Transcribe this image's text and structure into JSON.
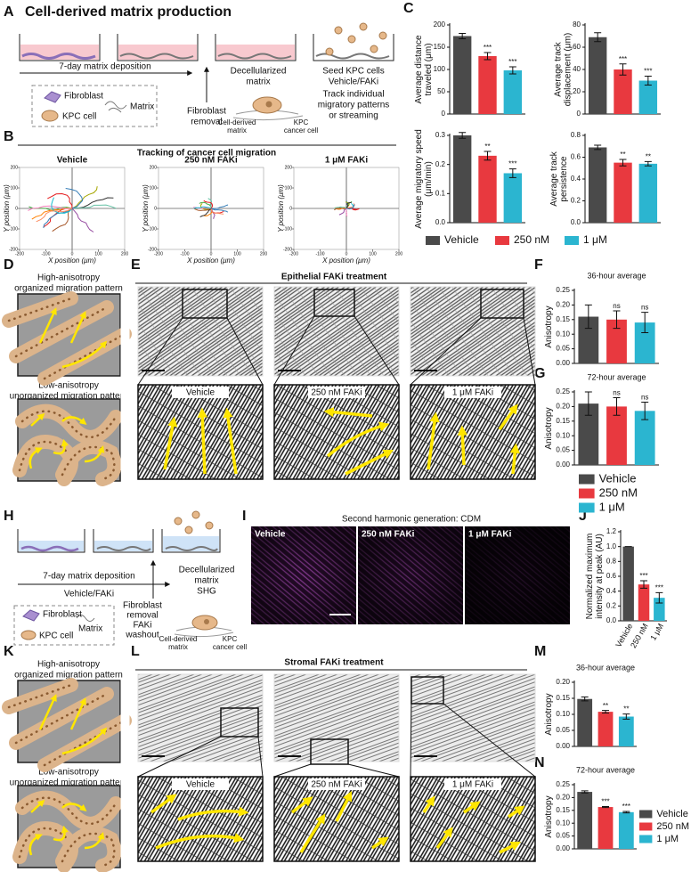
{
  "legend": [
    {
      "name": "Vehicle",
      "color": "#4a4a4a"
    },
    {
      "name": "250 nM",
      "color": "#e8393f"
    },
    {
      "name": "1 μM",
      "color": "#2bb5d0"
    }
  ],
  "A": {
    "letter": "A",
    "title": "Cell-derived matrix production",
    "deposition": "7-day matrix deposition",
    "removal": [
      "Fibroblast",
      "removal"
    ],
    "decell": [
      "Decellularized",
      "matrix"
    ],
    "seed": [
      "Seed KPC cells",
      "Vehicle/FAKi",
      "Track individual",
      "migratory patterns",
      "or streaming"
    ],
    "key": [
      "Fibroblast",
      "KPC cell",
      "Matrix"
    ],
    "inset": [
      "Cell-derived",
      "matrix",
      "KPC",
      "cancer cell"
    ]
  },
  "B": {
    "letter": "B",
    "title": "Tracking of cancer cell migration",
    "plots": [
      "Vehicle",
      "250 nM FAKi",
      "1 μM FAKi"
    ],
    "xlabel": "X position (μm)",
    "ylabel": "Y position (μm)",
    "ticks": [
      -200,
      -100,
      0,
      100,
      200
    ]
  },
  "C": {
    "letter": "C"
  },
  "D": {
    "letter": "D",
    "high": [
      "High-anisotropy",
      "organized migration pattern"
    ],
    "low": [
      "Low-anisotropy",
      "unorganized migration pattern"
    ]
  },
  "E": {
    "letter": "E",
    "title": "Epithelial FAKi treatment",
    "images": [
      "Vehicle",
      "250 nM FAKi",
      "1 μM FAKi"
    ]
  },
  "F": {
    "letter": "F"
  },
  "G": {
    "letter": "G"
  },
  "H": {
    "letter": "H",
    "deposition": "7-day matrix deposition",
    "treatment": "Vehicle/FAKi",
    "removal": [
      "Fibroblast",
      "removal",
      "FAKi",
      "washout"
    ],
    "decell": [
      "Decellularized",
      "matrix",
      "SHG"
    ],
    "key": [
      "Fibroblast",
      "KPC cell",
      "Matrix"
    ],
    "inset": [
      "Cell-derived",
      "matrix",
      "KPC",
      "cancer cell"
    ]
  },
  "I": {
    "letter": "I",
    "title": "Second harmonic generation: CDM",
    "images": [
      "Vehicle",
      "250 nM FAKi",
      "1 μM FAKi"
    ]
  },
  "J": {
    "letter": "J"
  },
  "K": {
    "letter": "K",
    "high": [
      "High-anisotropy",
      "organized migration pattern"
    ],
    "low": [
      "Low-anisotropy",
      "unorganized migration pattern"
    ]
  },
  "L": {
    "letter": "L",
    "title": "Stromal FAKi treatment",
    "images": [
      "Vehicle",
      "250 nM FAKi",
      "1 μM FAKi"
    ]
  },
  "M": {
    "letter": "M"
  },
  "N": {
    "letter": "N"
  },
  "chart_data": [
    {
      "type": "bar",
      "ylabel": [
        "Average distance",
        "traveled (μm)"
      ],
      "values": [
        175,
        130,
        98
      ],
      "errors": [
        6,
        8,
        8
      ],
      "significance": [
        null,
        "***",
        "***"
      ],
      "ylim": [
        0,
        200
      ],
      "yticks": [
        0,
        50,
        100,
        150,
        200
      ]
    },
    {
      "type": "bar",
      "ylabel": [
        "Average track",
        "displacement (μm)"
      ],
      "values": [
        69,
        40,
        30
      ],
      "errors": [
        4,
        5,
        4
      ],
      "significance": [
        null,
        "***",
        "***"
      ],
      "ylim": [
        0,
        80
      ],
      "yticks": [
        0,
        20,
        40,
        60,
        80
      ]
    },
    {
      "type": "bar",
      "ylabel": [
        "Average migratory speed",
        "(μm/min)"
      ],
      "values": [
        0.3,
        0.23,
        0.17
      ],
      "errors": [
        0.01,
        0.015,
        0.015
      ],
      "significance": [
        null,
        "**",
        "***"
      ],
      "ylim": [
        0,
        0.3
      ],
      "yticks": [
        {
          "value": 0,
          "label": "0.0"
        },
        0.1,
        0.2,
        0.3
      ]
    },
    {
      "type": "bar",
      "ylabel": [
        "Average track",
        "persistence"
      ],
      "values": [
        0.69,
        0.55,
        0.54
      ],
      "errors": [
        0.02,
        0.03,
        0.02
      ],
      "significance": [
        null,
        "**",
        "**"
      ],
      "ylim": [
        0,
        0.8
      ],
      "yticks": [
        {
          "value": 0,
          "label": "0.0"
        },
        0.2,
        0.4,
        0.6,
        0.8
      ]
    },
    {
      "type": "bar",
      "title": "36-hour average",
      "ylabel": [
        "Anisotropy"
      ],
      "values": [
        0.16,
        0.15,
        0.14
      ],
      "errors": [
        0.04,
        0.03,
        0.035
      ],
      "significance": [
        null,
        "ns",
        "ns"
      ],
      "ylim": [
        0,
        0.25
      ],
      "yticks": [
        {
          "value": 0,
          "label": "0.00"
        },
        0.05,
        {
          "value": 0.1,
          "label": "0.10"
        },
        0.15,
        {
          "value": 0.2,
          "label": "0.20"
        },
        0.25
      ]
    },
    {
      "type": "bar",
      "title": "72-hour average",
      "ylabel": [
        "Anisotropy"
      ],
      "values": [
        0.21,
        0.2,
        0.185
      ],
      "errors": [
        0.04,
        0.03,
        0.03
      ],
      "significance": [
        null,
        "ns",
        "ns"
      ],
      "ylim": [
        0,
        0.25
      ],
      "yticks": [
        {
          "value": 0,
          "label": "0.00"
        },
        0.05,
        {
          "value": 0.1,
          "label": "0.10"
        },
        0.15,
        {
          "value": 0.2,
          "label": "0.20"
        },
        0.25
      ]
    },
    {
      "type": "bar",
      "ylabel": [
        "Normalized maximum",
        "intensity at peak (AU)"
      ],
      "categories": [
        "Vehicle",
        "250 nM",
        "1 μM"
      ],
      "values": [
        1,
        0.49,
        0.31
      ],
      "errors": [
        0,
        0.05,
        0.07
      ],
      "significance": [
        null,
        "***",
        "***"
      ],
      "ylim": [
        0,
        1.2
      ],
      "yticks": [
        {
          "value": 0,
          "label": "0.0"
        },
        0.2,
        0.4,
        0.6,
        0.8,
        {
          "value": 1,
          "label": "1.0"
        },
        1.2
      ]
    },
    {
      "type": "bar",
      "title": "36-hour average",
      "ylabel": [
        "Anisotropy"
      ],
      "values": [
        0.148,
        0.108,
        0.093
      ],
      "errors": [
        0.006,
        0.004,
        0.008
      ],
      "significance": [
        null,
        "**",
        "**"
      ],
      "ylim": [
        0,
        0.2
      ],
      "yticks": [
        {
          "value": 0,
          "label": "0.00"
        },
        0.05,
        {
          "value": 0.1,
          "label": "0.10"
        },
        0.15,
        {
          "value": 0.2,
          "label": "0.20"
        }
      ]
    },
    {
      "type": "bar",
      "title": "72-hour average",
      "ylabel": [
        "Anisotropy"
      ],
      "values": [
        0.222,
        0.163,
        0.143
      ],
      "errors": [
        0.004,
        0.002,
        0.003
      ],
      "significance": [
        null,
        "***",
        "***"
      ],
      "ylim": [
        0,
        0.25
      ],
      "yticks": [
        {
          "value": 0,
          "label": "0.00"
        },
        0.05,
        {
          "value": 0.1,
          "label": "0.10"
        },
        0.15,
        {
          "value": 0.2,
          "label": "0.20"
        },
        0.25
      ]
    }
  ]
}
